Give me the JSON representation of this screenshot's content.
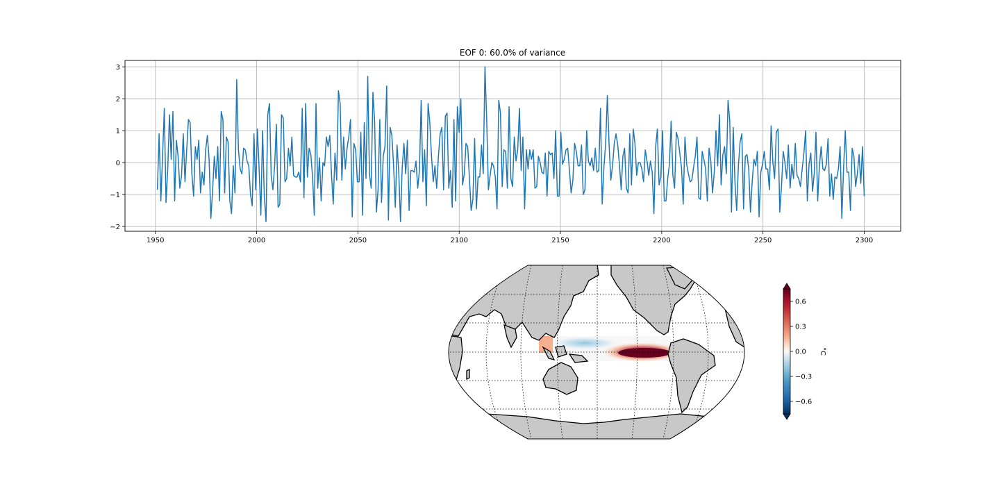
{
  "chart_data": [
    {
      "type": "line",
      "title": "EOF 0: 60.0% of variance",
      "xlabel": "",
      "ylabel": "",
      "xlim": [
        1935,
        2318
      ],
      "ylim": [
        -2.15,
        3.2
      ],
      "grid": true,
      "x_start": 1951,
      "x_end": 2300,
      "x_ticks": [
        1950,
        2000,
        2050,
        2100,
        2150,
        2200,
        2250,
        2300
      ],
      "y_ticks": [
        -2,
        -1,
        0,
        1,
        2,
        3
      ],
      "x_tick_labels": [
        "1950",
        "2000",
        "2050",
        "2100",
        "2150",
        "2200",
        "2250",
        "2300"
      ],
      "y_tick_labels": [
        "−2",
        "−1",
        "0",
        "1",
        "2",
        "3"
      ],
      "color": "#1f77b4",
      "series": [
        {
          "values": [
            -0.85,
            0.9,
            -1.2,
            0.2,
            1.7,
            -1.25,
            -0.2,
            1.5,
            0.1,
            1.6,
            -1.2,
            0.7,
            0.2,
            -0.8,
            -0.4,
            0.9,
            -0.6,
            0.4,
            1.35,
            1.25,
            -0.35,
            -1.05,
            0.5,
            0.1,
            0.7,
            -0.95,
            -0.3,
            -0.7,
            0.4,
            0.85,
            0.1,
            -1.75,
            -0.9,
            0.2,
            -0.5,
            0.5,
            -1.2,
            1.6,
            1.35,
            -0.95,
            0.8,
            0.65,
            -1.2,
            -1.6,
            -0.1,
            -0.95,
            2.6,
            0.4,
            -0.2,
            -0.35,
            0.45,
            0.4,
            0.05,
            -0.1,
            -1.0,
            -1.35,
            0.9,
            -0.85,
            1.05,
            -0.2,
            -1.65,
            1.0,
            -1.05,
            -1.85,
            1.5,
            1.85,
            -0.4,
            -0.85,
            -0.1,
            1.2,
            -1.4,
            -1.3,
            1.5,
            1.4,
            -0.6,
            -0.5,
            0.45,
            -0.1,
            0.8,
            -0.4,
            -0.45,
            -0.45,
            -0.3,
            -0.6,
            1.7,
            -1.1,
            1.85,
            -0.45,
            0.45,
            0.25,
            -0.45,
            -1.65,
            1.85,
            -0.8,
            0.15,
            -1.2,
            0.0,
            -0.1,
            0.8,
            0.5,
            0.85,
            -0.4,
            -1.3,
            0.3,
            -0.55,
            2.25,
            1.85,
            -0.55,
            0.8,
            -0.2,
            0.45,
            0.8,
            1.35,
            -1.7,
            0.6,
            0.4,
            -0.6,
            -0.6,
            0.95,
            -1.65,
            1.25,
            -0.5,
            2.7,
            -0.35,
            -0.8,
            2.2,
            1.3,
            -1.55,
            -0.85,
            1.35,
            -1.25,
            0.2,
            0.5,
            2.4,
            -1.8,
            1.1,
            0.85,
            -0.1,
            -1.4,
            0.55,
            -0.3,
            -1.85,
            -0.15,
            0.6,
            -0.35,
            0.7,
            -1.5,
            -0.25,
            -0.25,
            -0.3,
            0.05,
            -0.8,
            -0.25,
            1.95,
            -0.6,
            0.4,
            -1.35,
            1.85,
            1.25,
            0.2,
            -0.6,
            -0.1,
            -0.8,
            0.2,
            0.9,
            1.1,
            -0.85,
            1.45,
            1.55,
            -0.8,
            -0.25,
            -1.4,
            1.35,
            -1.2,
            1.75,
            0.95,
            2.0,
            -0.7,
            -0.35,
            0.6,
            0.5,
            -0.5,
            -1.5,
            -1.15,
            0.75,
            -1.45,
            -0.45,
            -0.45,
            0.55,
            -0.35,
            3.0,
            1.35,
            -0.85,
            -0.4,
            0.0,
            -0.1,
            -0.45,
            -1.45,
            1.95,
            1.55,
            -0.75,
            0.4,
            0.35,
            -0.8,
            1.75,
            -0.5,
            -0.75,
            0.8,
            0.05,
            0.4,
            1.7,
            -0.25,
            0.8,
            -1.45,
            0.4,
            -0.2,
            0.4,
            0.1,
            0.4,
            -0.8,
            -0.75,
            0.2,
            0.0,
            -0.3,
            -0.35,
            0.3,
            -1.05,
            0.35,
            0.25,
            0.3,
            -0.5,
            1.0,
            -1.05,
            -1.05,
            0.95,
            -0.05,
            0.1,
            0.4,
            0.45,
            -0.25,
            -0.95,
            -0.55,
            0.6,
            0.35,
            -0.1,
            -0.1,
            0.55,
            -1.0,
            -0.85,
            1.0,
            0.05,
            -0.1,
            0.15,
            -0.25,
            0.45,
            -0.3,
            -0.25,
            1.7,
            -1.3,
            -0.15,
            0.6,
            2.1,
            0.55,
            -0.55,
            -0.1,
            0.6,
            0.9,
            0.55,
            -0.05,
            -0.85,
            0.2,
            0.45,
            -0.8,
            -0.95,
            0.9,
            -0.7,
            1.05,
            0.6,
            -0.4,
            0.0,
            0.0,
            -0.2,
            -0.6,
            0.4,
            0.05,
            -0.4,
            0.05,
            -0.3,
            -1.6,
            0.5,
            1.05,
            -0.7,
            -0.45,
            1.0,
            -1.2,
            -1.2,
            -0.5,
            -0.05,
            1.3,
            -0.4,
            -0.8,
            0.95,
            0.75,
            0.3,
            -0.15,
            -1.3,
            0.8,
            -0.05,
            -0.35,
            -0.6,
            -0.55,
            -0.15,
            0.2,
            0.8,
            -1.1,
            -1.15,
            0.35,
            0.1,
            -0.2,
            -1.2,
            0.45,
            0.05,
            -0.95,
            -0.3,
            1.0,
            -0.1,
            1.5,
            -0.7,
            0.25,
            0.5,
            -0.35,
            1.95,
            1.3,
            -1.55,
            1.1,
            -0.6,
            -1.5,
            -0.1,
            0.65,
            0.9,
            -1.45,
            0.2,
            0.25,
            -0.2,
            -1.55,
            -0.6,
            0.1,
            -0.1,
            0.35,
            -1.7,
            -0.3,
            -0.05,
            0.35,
            -0.2,
            -0.2,
            -0.85,
            1.15,
            0.0,
            -0.5,
            0.95,
            1.05,
            -1.55,
            -0.75,
            0.35,
            0.0,
            -0.5,
            0.55,
            -0.8,
            -0.05,
            -0.5,
            0.6,
            -0.4,
            -0.5,
            -0.75,
            -0.2,
            0.3,
            1.0,
            -1.2,
            -0.05,
            0.3,
            -0.9,
            -0.35,
            0.95,
            -1.2,
            -0.1,
            0.5,
            -0.2,
            -0.25,
            -0.05,
            0.75,
            -1.05,
            -0.35,
            -1.15,
            -0.45,
            -0.5,
            -0.2,
            0.5,
            -1.75,
            -0.2,
            1.0,
            -0.3,
            -0.3,
            -1.5,
            0.45,
            0.2,
            -0.75,
            -0.35,
            0.25,
            -0.65,
            0.5,
            -1.05
          ]
        }
      ]
    },
    {
      "type": "heatmap",
      "projection": "Robinson, centered on the Pacific",
      "description_values": {
        "warm_core": "tropical eastern Pacific",
        "cool_band": "tropical western/central Pacific",
        "warm_edge": "Maritime Continent"
      },
      "colormap": "RdBu_r",
      "vmin": -0.75,
      "vmax": 0.75,
      "colorbar_label": "°C",
      "colorbar_ticks": [
        0.6,
        0.3,
        0.0,
        -0.3,
        -0.6
      ],
      "colorbar_tick_labels": [
        "0.6",
        "0.3",
        "0.0",
        "−0.3",
        "−0.6"
      ],
      "land_color": "#c8c8c8"
    }
  ]
}
